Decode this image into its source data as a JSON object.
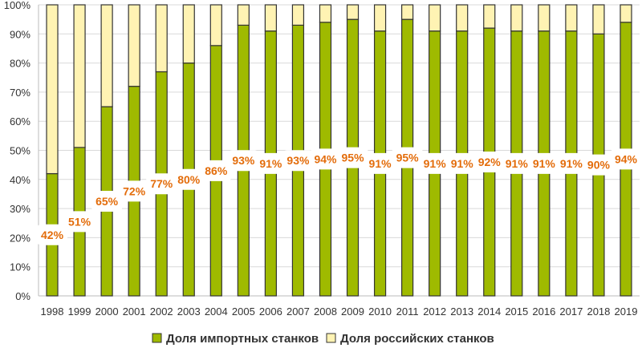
{
  "chart_data": {
    "type": "bar",
    "stacked": true,
    "categories": [
      "1998",
      "1999",
      "2000",
      "2001",
      "2002",
      "2003",
      "2004",
      "2005",
      "2006",
      "2007",
      "2008",
      "2009",
      "2010",
      "2011",
      "2012",
      "2013",
      "2014",
      "2015",
      "2016",
      "2017",
      "2018",
      "2019"
    ],
    "series": [
      {
        "name": "Доля импортных станков",
        "color": "#9fba00",
        "values": [
          42,
          51,
          65,
          72,
          77,
          80,
          86,
          93,
          91,
          93,
          94,
          95,
          91,
          95,
          91,
          91,
          92,
          91,
          91,
          91,
          90,
          94
        ]
      },
      {
        "name": "Доля российских станков",
        "color": "#fff3b3",
        "values": [
          58,
          49,
          35,
          28,
          23,
          20,
          14,
          7,
          9,
          7,
          6,
          5,
          9,
          5,
          9,
          9,
          8,
          9,
          9,
          9,
          10,
          6
        ]
      }
    ],
    "data_labels": [
      "42%",
      "51%",
      "65%",
      "72%",
      "77%",
      "80%",
      "86%",
      "93%",
      "91%",
      "93%",
      "94%",
      "95%",
      "91%",
      "95%",
      "91%",
      "91%",
      "92%",
      "91%",
      "91%",
      "91%",
      "90%",
      "94%"
    ],
    "yticks": [
      "0%",
      "10%",
      "20%",
      "30%",
      "40%",
      "50%",
      "60%",
      "70%",
      "80%",
      "90%",
      "100%"
    ],
    "ylim": [
      0,
      100
    ],
    "grid": true,
    "legend": "bottom",
    "title": "",
    "xlabel": "",
    "ylabel": ""
  }
}
